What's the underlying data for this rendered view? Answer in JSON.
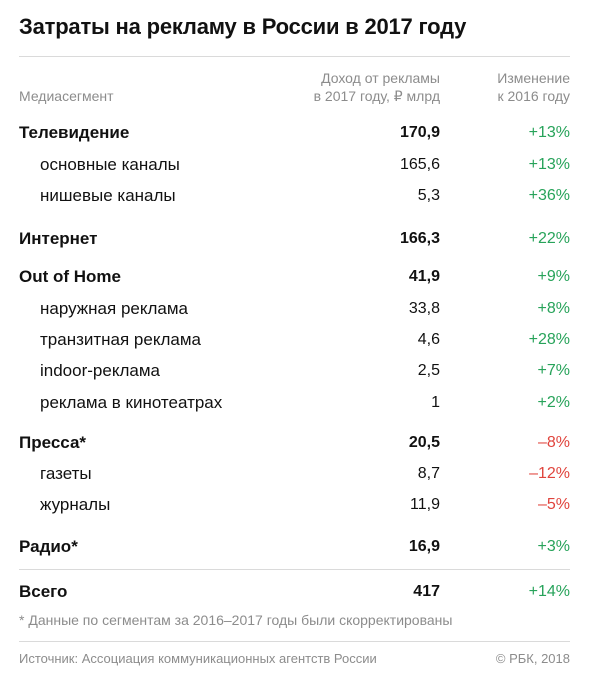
{
  "chart_data": {
    "type": "table",
    "title": "Затраты на рекламу в России в 2017 году",
    "columns": [
      "Медиасегмент",
      "Доход от рекламы\nв 2017 году, ₽ млрд",
      "Изменение\nк 2016 году"
    ],
    "rows": [
      {
        "segment": "Телевидение",
        "value": "170,9",
        "change": "+13%",
        "level": "main",
        "dir": "up"
      },
      {
        "segment": "основные каналы",
        "value": "165,6",
        "change": "+13%",
        "level": "sub",
        "dir": "up"
      },
      {
        "segment": "нишевые каналы",
        "value": "5,3",
        "change": "+36%",
        "level": "sub",
        "dir": "up"
      },
      {
        "segment": "Интернет",
        "value": "166,3",
        "change": "+22%",
        "level": "main",
        "dir": "up"
      },
      {
        "segment": "Out of Home",
        "value": "41,9",
        "change": "+9%",
        "level": "main",
        "dir": "up"
      },
      {
        "segment": "наружная реклама",
        "value": "33,8",
        "change": "+8%",
        "level": "sub",
        "dir": "up"
      },
      {
        "segment": "транзитная реклама",
        "value": "4,6",
        "change": "+28%",
        "level": "sub",
        "dir": "up"
      },
      {
        "segment": "indoor-реклама",
        "value": "2,5",
        "change": "+7%",
        "level": "sub",
        "dir": "up"
      },
      {
        "segment": "реклама в кинотеатрах",
        "value": "1",
        "change": "+2%",
        "level": "sub",
        "dir": "up"
      },
      {
        "segment": "Пресса*",
        "value": "20,5",
        "change": "–8%",
        "level": "main",
        "dir": "down"
      },
      {
        "segment": "газеты",
        "value": "8,7",
        "change": "–12%",
        "level": "sub",
        "dir": "down"
      },
      {
        "segment": "журналы",
        "value": "11,9",
        "change": "–5%",
        "level": "sub",
        "dir": "down"
      },
      {
        "segment": "Радио*",
        "value": "16,9",
        "change": "+3%",
        "level": "main",
        "dir": "up"
      },
      {
        "segment": "Всего",
        "value": "417",
        "change": "+14%",
        "level": "main",
        "dir": "up"
      }
    ],
    "footnote": "* Данные по сегментам за 2016–2017 годы были скорректированы",
    "source": "Источник: Ассоциация коммуникационных агентств России",
    "copyright": "© РБК, 2018",
    "colors": {
      "positive": "#27a35a",
      "negative": "#e0443d",
      "text": "#111111",
      "muted": "#8c8c8c"
    }
  }
}
